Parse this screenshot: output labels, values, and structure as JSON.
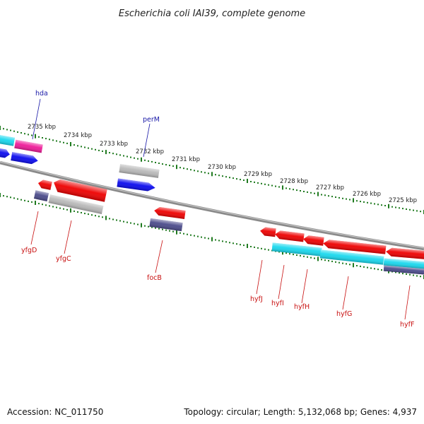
{
  "title": "Escherichia coli IAI39, complete genome",
  "colors": {
    "backbone": "#8a8a8a",
    "tick": "#1f7a1f",
    "gene_red": "#ee0000",
    "gene_blue": "#0a0aee",
    "gene_cyan": "#18d8ee",
    "gene_magenta": "#ee1a98",
    "gene_gray": "#b8b8b8",
    "gene_navy": "#4a4a8a",
    "label_top": "#1a1aa8",
    "label_bot": "#c81010"
  },
  "scale_labels": [
    "2735 kbp",
    "2734 kbp",
    "2733 kbp",
    "2732 kbp",
    "2731 kbp",
    "2730 kbp",
    "2729 kbp",
    "2728 kbp",
    "2727 kbp",
    "2726 kbp",
    "2725 kbp"
  ],
  "top_gene_labels": [
    "hda",
    "perM"
  ],
  "bottom_gene_labels": [
    "yfgD",
    "yfgC",
    "focB",
    "hyfJ",
    "hyfI",
    "hyfH",
    "hyfG",
    "hyfF"
  ],
  "footer": {
    "accession": "Accession: NC_011750",
    "summary": "Topology: circular; Length: 5,132,068 bp; Genes: 4,937"
  }
}
